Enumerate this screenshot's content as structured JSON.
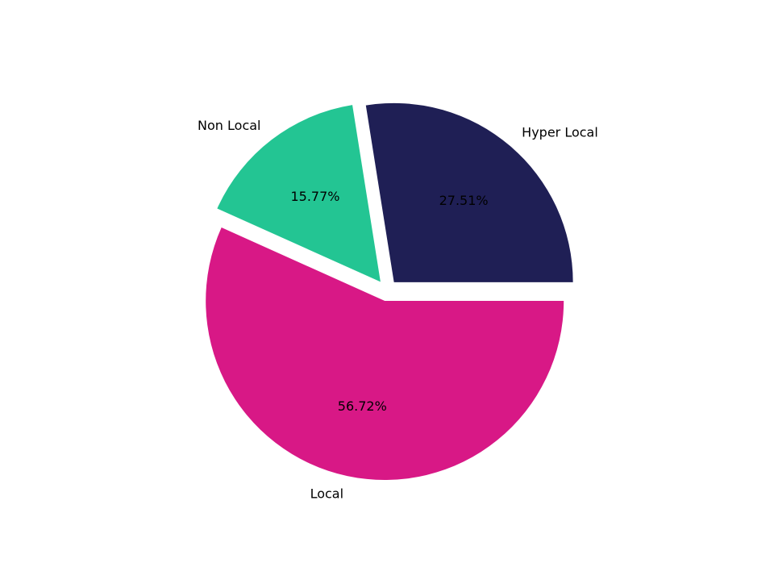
{
  "chart_data": {
    "type": "pie",
    "categories": [
      "Hyper Local",
      "Non Local",
      "Local"
    ],
    "values": [
      27.51,
      15.77,
      56.72
    ],
    "value_labels": [
      "27.51%",
      "15.77%",
      "56.72%"
    ],
    "colors": [
      "#1f1f55",
      "#23c593",
      "#d81886"
    ],
    "start_angle": "0 degrees (3 o'clock), counter-clockwise",
    "exploded": [
      true,
      true,
      true
    ],
    "legend": "none"
  }
}
